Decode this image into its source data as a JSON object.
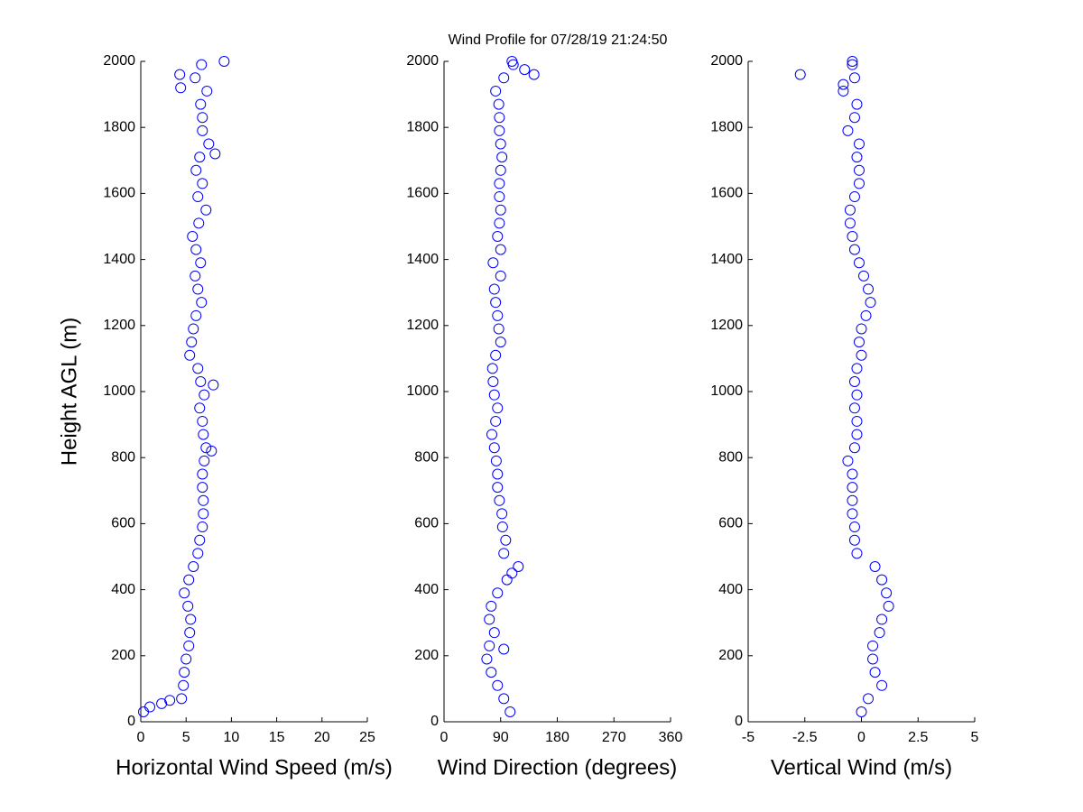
{
  "chart_data": [
    {
      "type": "scatter",
      "title": "Wind Profile for  07/28/19 21:24:50",
      "xlabel": "Horizontal Wind Speed (m/s)",
      "ylabel": "Height AGL (m)",
      "color": "#0000ff",
      "xlim": [
        0,
        25
      ],
      "xticks": [
        0,
        5,
        10,
        15,
        20,
        25
      ],
      "ylim": [
        0,
        2000
      ],
      "yticks": [
        0,
        200,
        400,
        600,
        800,
        1000,
        1200,
        1400,
        1600,
        1800,
        2000
      ],
      "x": [
        0.3,
        4.5,
        4.7,
        4.8,
        5.0,
        5.3,
        5.4,
        5.5,
        5.2,
        4.8,
        5.3,
        5.8,
        6.3,
        6.5,
        6.8,
        6.9,
        6.9,
        6.8,
        6.8,
        7.0,
        7.2,
        6.9,
        6.8,
        6.5,
        7.0,
        6.6,
        6.3,
        5.4,
        5.6,
        5.8,
        6.1,
        6.7,
        6.3,
        6.0,
        6.6,
        6.1,
        5.7,
        6.4,
        7.2,
        6.3,
        6.8,
        6.1,
        6.5,
        7.5,
        6.8,
        6.8,
        6.6,
        7.3,
        6.0,
        6.7,
        1.0,
        2.3,
        3.2,
        9.2,
        4.3,
        4.4,
        8.2,
        8.0,
        7.8
      ],
      "y": [
        30,
        70,
        110,
        150,
        190,
        230,
        270,
        310,
        350,
        390,
        430,
        470,
        510,
        550,
        590,
        630,
        670,
        710,
        750,
        790,
        830,
        870,
        910,
        950,
        990,
        1030,
        1070,
        1110,
        1150,
        1190,
        1230,
        1270,
        1310,
        1350,
        1390,
        1430,
        1470,
        1510,
        1550,
        1590,
        1630,
        1670,
        1710,
        1750,
        1790,
        1830,
        1870,
        1910,
        1950,
        1990,
        45,
        55,
        65,
        2000,
        1960,
        1920,
        1720,
        1020,
        820
      ]
    },
    {
      "type": "scatter",
      "xlabel": "Wind Direction (degrees)",
      "color": "#0000ff",
      "xlim": [
        0,
        360
      ],
      "xticks": [
        0,
        90,
        180,
        270,
        360
      ],
      "ylim": [
        0,
        2000
      ],
      "yticks": [
        0,
        200,
        400,
        600,
        800,
        1000,
        1200,
        1400,
        1600,
        1800,
        2000
      ],
      "x": [
        105,
        95,
        85,
        75,
        68,
        72,
        80,
        72,
        75,
        85,
        100,
        118,
        95,
        98,
        93,
        92,
        88,
        85,
        85,
        83,
        80,
        76,
        82,
        85,
        80,
        78,
        77,
        82,
        90,
        87,
        85,
        82,
        80,
        90,
        78,
        90,
        85,
        88,
        90,
        88,
        88,
        90,
        92,
        90,
        88,
        88,
        87,
        82,
        95,
        110,
        143,
        128,
        108,
        95,
        108
      ],
      "y": [
        30,
        70,
        110,
        150,
        190,
        230,
        270,
        310,
        350,
        390,
        430,
        470,
        510,
        550,
        590,
        630,
        670,
        710,
        750,
        790,
        830,
        870,
        910,
        950,
        990,
        1030,
        1070,
        1110,
        1150,
        1190,
        1230,
        1270,
        1310,
        1350,
        1390,
        1430,
        1470,
        1510,
        1550,
        1590,
        1630,
        1670,
        1710,
        1750,
        1790,
        1830,
        1870,
        1910,
        1950,
        1990,
        1960,
        1975,
        2000,
        220,
        450
      ]
    },
    {
      "type": "scatter",
      "xlabel": "Vertical Wind (m/s)",
      "color": "#0000ff",
      "xlim": [
        -5,
        5
      ],
      "xticks": [
        -5,
        -2.5,
        0,
        2.5,
        5
      ],
      "ylim": [
        0,
        2000
      ],
      "yticks": [
        0,
        200,
        400,
        600,
        800,
        1000,
        1200,
        1400,
        1600,
        1800,
        2000
      ],
      "x": [
        0.0,
        0.3,
        0.9,
        0.6,
        0.5,
        0.5,
        0.8,
        0.9,
        1.2,
        1.1,
        0.9,
        0.6,
        -0.2,
        -0.3,
        -0.3,
        -0.4,
        -0.4,
        -0.4,
        -0.4,
        -0.6,
        -0.3,
        -0.2,
        -0.2,
        -0.3,
        -0.2,
        -0.3,
        -0.2,
        0.0,
        -0.1,
        0.0,
        0.2,
        0.4,
        0.3,
        0.1,
        -0.1,
        -0.3,
        -0.4,
        -0.5,
        -0.5,
        -0.3,
        -0.1,
        -0.1,
        -0.2,
        -0.1,
        -0.6,
        -0.3,
        -0.2,
        -0.8,
        -0.3,
        -0.4,
        -2.7,
        -0.8,
        -0.4
      ],
      "y": [
        30,
        70,
        110,
        150,
        190,
        230,
        270,
        310,
        350,
        390,
        430,
        470,
        510,
        550,
        590,
        630,
        670,
        710,
        750,
        790,
        830,
        870,
        910,
        950,
        990,
        1030,
        1070,
        1110,
        1150,
        1190,
        1230,
        1270,
        1310,
        1350,
        1390,
        1430,
        1470,
        1510,
        1550,
        1590,
        1630,
        1670,
        1710,
        1750,
        1790,
        1830,
        1870,
        1910,
        1950,
        1990,
        1960,
        1930,
        2000
      ]
    }
  ]
}
